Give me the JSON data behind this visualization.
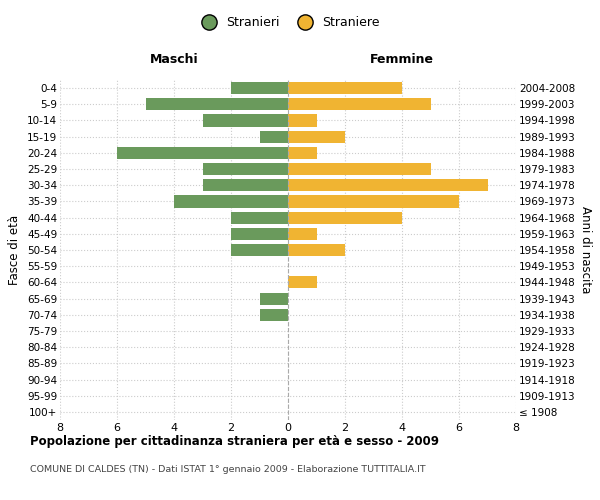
{
  "age_groups": [
    "0-4",
    "5-9",
    "10-14",
    "15-19",
    "20-24",
    "25-29",
    "30-34",
    "35-39",
    "40-44",
    "45-49",
    "50-54",
    "55-59",
    "60-64",
    "65-69",
    "70-74",
    "75-79",
    "80-84",
    "85-89",
    "90-94",
    "95-99",
    "100+"
  ],
  "birth_years": [
    "2004-2008",
    "1999-2003",
    "1994-1998",
    "1989-1993",
    "1984-1988",
    "1979-1983",
    "1974-1978",
    "1969-1973",
    "1964-1968",
    "1959-1963",
    "1954-1958",
    "1949-1953",
    "1944-1948",
    "1939-1943",
    "1934-1938",
    "1929-1933",
    "1924-1928",
    "1919-1923",
    "1914-1918",
    "1909-1913",
    "≤ 1908"
  ],
  "maschi": [
    2,
    5,
    3,
    1,
    6,
    3,
    3,
    4,
    2,
    2,
    2,
    0,
    0,
    1,
    1,
    0,
    0,
    0,
    0,
    0,
    0
  ],
  "femmine": [
    4,
    5,
    1,
    2,
    1,
    5,
    7,
    6,
    4,
    1,
    2,
    0,
    1,
    0,
    0,
    0,
    0,
    0,
    0,
    0,
    0
  ],
  "color_maschi": "#6a9a5c",
  "color_femmine": "#f0b432",
  "title": "Popolazione per cittadinanza straniera per età e sesso - 2009",
  "subtitle": "COMUNE DI CALDES (TN) - Dati ISTAT 1° gennaio 2009 - Elaborazione TUTTITALIA.IT",
  "label_maschi": "Maschi",
  "label_femmine": "Femmine",
  "ylabel_left": "Fasce di età",
  "ylabel_right": "Anni di nascita",
  "legend_maschi": "Stranieri",
  "legend_femmine": "Straniere",
  "xlim": 8,
  "background_color": "#ffffff",
  "grid_color": "#cccccc"
}
